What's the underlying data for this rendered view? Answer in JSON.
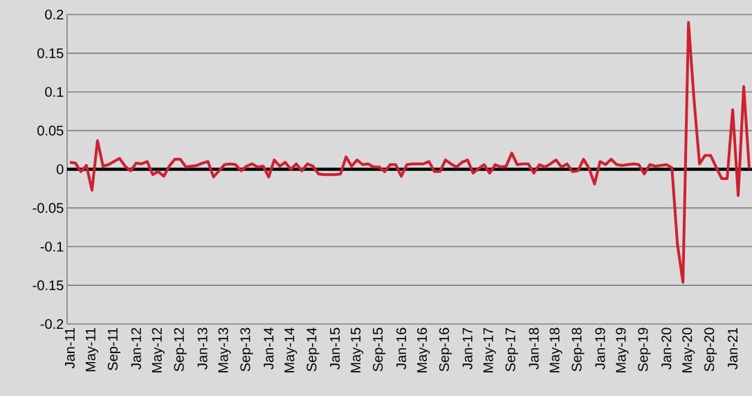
{
  "chart_data": {
    "type": "line",
    "categories": [
      "Jan-11",
      null,
      null,
      null,
      "May-11",
      null,
      null,
      null,
      "Sep-11",
      null,
      null,
      null,
      "Jan-12",
      null,
      null,
      null,
      "May-12",
      null,
      null,
      null,
      "Sep-12",
      null,
      null,
      null,
      "Jan-13",
      null,
      null,
      null,
      "May-13",
      null,
      null,
      null,
      "Sep-13",
      null,
      null,
      null,
      "Jan-14",
      null,
      null,
      null,
      "May-14",
      null,
      null,
      null,
      "Sep-14",
      null,
      null,
      null,
      "Jan-15",
      null,
      null,
      null,
      "May-15",
      null,
      null,
      null,
      "Sep-15",
      null,
      null,
      null,
      "Jan-16",
      null,
      null,
      null,
      "May-16",
      null,
      null,
      null,
      "Sep-16",
      null,
      null,
      null,
      "Jan-17",
      null,
      null,
      null,
      "May-17",
      null,
      null,
      null,
      "Sep-17",
      null,
      null,
      null,
      "Jan-18",
      null,
      null,
      null,
      "May-18",
      null,
      null,
      null,
      "Sep-18",
      null,
      null,
      null,
      "Jan-19",
      null,
      null,
      null,
      "May-19",
      null,
      null,
      null,
      "Sep-19",
      null,
      null,
      null,
      "Jan-20",
      null,
      null,
      null,
      "May-20",
      null,
      null,
      null,
      "Sep-20",
      null,
      null,
      null,
      "Jan-21",
      null,
      null,
      null
    ],
    "series": [
      {
        "color": "#d0202f",
        "values": [
          0.009,
          0.008,
          -0.003,
          0.005,
          -0.027,
          0.037,
          0.004,
          0.006,
          0.01,
          0.014,
          0.004,
          -0.002,
          0.008,
          0.007,
          0.01,
          -0.007,
          -0.003,
          -0.009,
          0.004,
          0.013,
          0.013,
          0.003,
          0.004,
          0.005,
          0.008,
          0.01,
          -0.01,
          -0.002,
          0.006,
          0.007,
          0.006,
          -0.002,
          0.004,
          0.007,
          0.003,
          0.004,
          -0.01,
          0.012,
          0.004,
          0.009,
          0,
          0.007,
          -0.002,
          0.007,
          0.004,
          -0.006,
          -0.007,
          -0.007,
          -0.007,
          -0.006,
          0.016,
          0.004,
          0.012,
          0.006,
          0.007,
          0.003,
          0.003,
          -0.003,
          0.006,
          0.006,
          -0.009,
          0.006,
          0.007,
          0.007,
          0.007,
          0.01,
          -0.003,
          -0.003,
          0.012,
          0.007,
          0.003,
          0.009,
          0.012,
          -0.005,
          0.001,
          0.006,
          -0.005,
          0.006,
          0.003,
          0.004,
          0.021,
          0.006,
          0.007,
          0.007,
          -0.005,
          0.006,
          0.003,
          0.007,
          0.012,
          0.003,
          0.007,
          -0.003,
          -0.002,
          0.013,
          0.001,
          -0.019,
          0.01,
          0.006,
          0.013,
          0.006,
          0.005,
          0.006,
          0.007,
          0.006,
          -0.006,
          0.006,
          0.004,
          0.005,
          0.006,
          0.002,
          -0.097,
          -0.146,
          0.19,
          0.09,
          0.007,
          0.018,
          0.018,
          0.003,
          -0.012,
          -0.012,
          0.077,
          -0.034,
          0.107,
          0.001
        ]
      }
    ],
    "ylim": [
      -0.2,
      0.2
    ],
    "yticks": [
      -0.2,
      -0.15,
      -0.1,
      -0.05,
      0,
      0.05,
      0.1,
      0.15,
      0.2
    ],
    "grid": "y",
    "marker": "none",
    "line_style": "solid"
  }
}
